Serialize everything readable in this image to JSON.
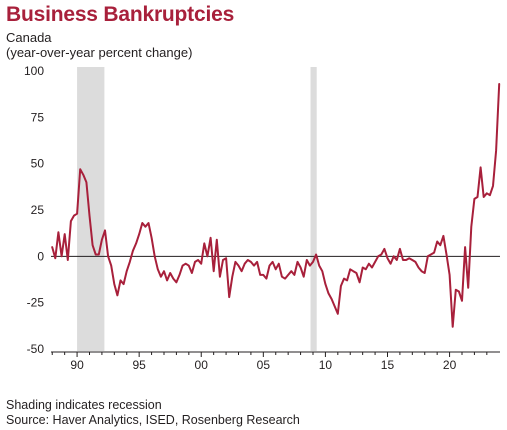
{
  "header": {
    "title": "Business Bankruptcies",
    "subtitle_line1": "Canada",
    "subtitle_line2": "(year-over-year percent change)"
  },
  "footer": {
    "note": "Shading indicates recession",
    "source": "Source: Haver Analytics, ISED, Rosenberg Research"
  },
  "colors": {
    "series": "#a8203b",
    "recession": "#dcdcdc",
    "zero_line": "#231f20"
  },
  "chart_data": {
    "type": "line",
    "title": "Business Bankruptcies",
    "subtitle": "Canada (year-over-year percent change)",
    "xlabel": "",
    "ylabel": "",
    "xlim": [
      1987.9,
      2023.9
    ],
    "ylim": [
      -50,
      100
    ],
    "y_ticks": [
      100,
      75,
      50,
      25,
      0,
      -25,
      -50
    ],
    "y_tick_labels": [
      "100",
      "75",
      "50",
      "25",
      "0",
      "-25",
      "-50"
    ],
    "x_ticks": [
      1990,
      1995,
      2000,
      2005,
      2010,
      2015,
      2020
    ],
    "x_tick_labels": [
      "90",
      "95",
      "00",
      "05",
      "10",
      "15",
      "20"
    ],
    "grid": false,
    "recessions": [
      [
        1990.0,
        1992.2
      ],
      [
        2008.8,
        2009.3
      ]
    ],
    "series": [
      {
        "values": [
          [
            1988.0,
            5
          ],
          [
            1988.25,
            -1
          ],
          [
            1988.5,
            13
          ],
          [
            1988.75,
            0
          ],
          [
            1989.0,
            12
          ],
          [
            1989.25,
            -2
          ],
          [
            1989.5,
            19
          ],
          [
            1989.75,
            22
          ],
          [
            1990.0,
            23
          ],
          [
            1990.25,
            47
          ],
          [
            1990.5,
            44
          ],
          [
            1990.75,
            40
          ],
          [
            1991.0,
            22
          ],
          [
            1991.25,
            6
          ],
          [
            1991.5,
            1
          ],
          [
            1991.75,
            1
          ],
          [
            1992.0,
            9
          ],
          [
            1992.25,
            14
          ],
          [
            1992.5,
            0
          ],
          [
            1992.75,
            -5
          ],
          [
            1993.0,
            -15
          ],
          [
            1993.25,
            -21
          ],
          [
            1993.5,
            -13
          ],
          [
            1993.75,
            -15
          ],
          [
            1994.0,
            -8
          ],
          [
            1994.25,
            -3
          ],
          [
            1994.5,
            3
          ],
          [
            1994.75,
            7
          ],
          [
            1995.0,
            12
          ],
          [
            1995.25,
            18
          ],
          [
            1995.5,
            16
          ],
          [
            1995.75,
            18
          ],
          [
            1996.0,
            10
          ],
          [
            1996.25,
            0
          ],
          [
            1996.5,
            -7
          ],
          [
            1996.75,
            -11
          ],
          [
            1997.0,
            -8
          ],
          [
            1997.25,
            -13
          ],
          [
            1997.5,
            -9
          ],
          [
            1997.75,
            -12
          ],
          [
            1998.0,
            -14
          ],
          [
            1998.25,
            -10
          ],
          [
            1998.5,
            -5
          ],
          [
            1998.75,
            -4
          ],
          [
            1999.0,
            -5
          ],
          [
            1999.25,
            -9
          ],
          [
            1999.5,
            -3
          ],
          [
            1999.75,
            -2
          ],
          [
            2000.0,
            -4
          ],
          [
            2000.25,
            7
          ],
          [
            2000.5,
            0
          ],
          [
            2000.75,
            10
          ],
          [
            2001.0,
            -8
          ],
          [
            2001.25,
            9
          ],
          [
            2001.5,
            -11
          ],
          [
            2001.75,
            -2
          ],
          [
            2002.0,
            -1
          ],
          [
            2002.25,
            -22
          ],
          [
            2002.5,
            -11
          ],
          [
            2002.75,
            -3
          ],
          [
            2003.0,
            -5
          ],
          [
            2003.25,
            -8
          ],
          [
            2003.5,
            -4
          ],
          [
            2003.75,
            -2
          ],
          [
            2004.0,
            -3
          ],
          [
            2004.25,
            -5
          ],
          [
            2004.5,
            -3
          ],
          [
            2004.75,
            -10
          ],
          [
            2005.0,
            -10
          ],
          [
            2005.25,
            -12
          ],
          [
            2005.5,
            -5
          ],
          [
            2005.75,
            -3
          ],
          [
            2006.0,
            -7
          ],
          [
            2006.25,
            -4
          ],
          [
            2006.5,
            -11
          ],
          [
            2006.75,
            -12
          ],
          [
            2007.0,
            -10
          ],
          [
            2007.25,
            -8
          ],
          [
            2007.5,
            -10
          ],
          [
            2007.75,
            -3
          ],
          [
            2008.0,
            -6
          ],
          [
            2008.25,
            -11
          ],
          [
            2008.5,
            -2
          ],
          [
            2008.75,
            -5
          ],
          [
            2009.0,
            -3
          ],
          [
            2009.25,
            1
          ],
          [
            2009.5,
            -5
          ],
          [
            2009.75,
            -8
          ],
          [
            2010.0,
            -15
          ],
          [
            2010.25,
            -20
          ],
          [
            2010.5,
            -23
          ],
          [
            2010.75,
            -27
          ],
          [
            2011.0,
            -31
          ],
          [
            2011.25,
            -16
          ],
          [
            2011.5,
            -12
          ],
          [
            2011.75,
            -13
          ],
          [
            2012.0,
            -7
          ],
          [
            2012.25,
            -8
          ],
          [
            2012.5,
            -9
          ],
          [
            2012.75,
            -14
          ],
          [
            2013.0,
            -6
          ],
          [
            2013.25,
            -7
          ],
          [
            2013.5,
            -4
          ],
          [
            2013.75,
            -6
          ],
          [
            2014.0,
            -3
          ],
          [
            2014.25,
            0
          ],
          [
            2014.5,
            1
          ],
          [
            2014.75,
            4
          ],
          [
            2015.0,
            -1
          ],
          [
            2015.25,
            -4
          ],
          [
            2015.5,
            0
          ],
          [
            2015.75,
            -2
          ],
          [
            2016.0,
            4
          ],
          [
            2016.25,
            -2
          ],
          [
            2016.5,
            -2
          ],
          [
            2016.75,
            -1
          ],
          [
            2017.0,
            -2
          ],
          [
            2017.25,
            -3
          ],
          [
            2017.5,
            -6
          ],
          [
            2017.75,
            -8
          ],
          [
            2018.0,
            -9
          ],
          [
            2018.25,
            0
          ],
          [
            2018.5,
            1
          ],
          [
            2018.75,
            2
          ],
          [
            2019.0,
            8
          ],
          [
            2019.25,
            6
          ],
          [
            2019.5,
            11
          ],
          [
            2019.75,
            1
          ],
          [
            2020.0,
            -10
          ],
          [
            2020.25,
            -38
          ],
          [
            2020.5,
            -18
          ],
          [
            2020.75,
            -19
          ],
          [
            2021.0,
            -24
          ],
          [
            2021.25,
            5
          ],
          [
            2021.5,
            -17
          ],
          [
            2021.75,
            16
          ],
          [
            2022.0,
            31
          ],
          [
            2022.25,
            32
          ],
          [
            2022.5,
            48
          ],
          [
            2022.75,
            32
          ],
          [
            2023.0,
            34
          ],
          [
            2023.25,
            33
          ],
          [
            2023.5,
            38
          ],
          [
            2023.75,
            57
          ],
          [
            2024.0,
            93
          ]
        ]
      }
    ]
  }
}
